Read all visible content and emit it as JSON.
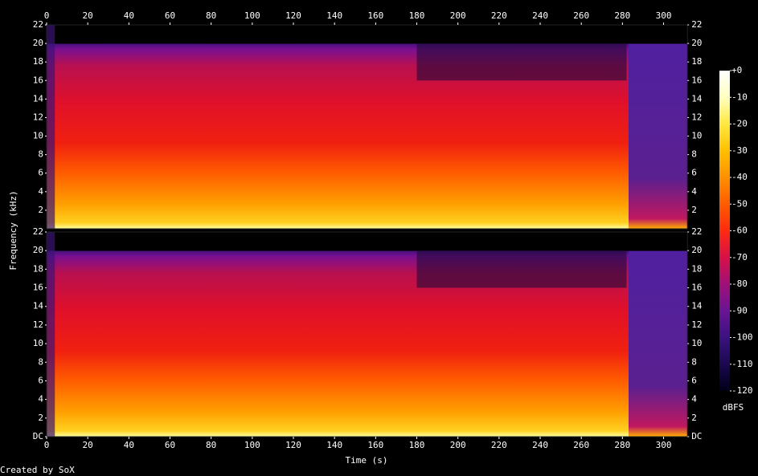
{
  "chart_data": {
    "type": "spectrogram",
    "x_label": "Time (s)",
    "y_label": "Frequency (kHz)",
    "colorbar_label": "dBFS",
    "footer": "Created by SoX",
    "xlim": [
      0,
      311.6
    ],
    "xticks": [
      0,
      20,
      40,
      60,
      80,
      100,
      120,
      140,
      160,
      180,
      200,
      220,
      240,
      260,
      280,
      300
    ],
    "panels": [
      {
        "ylim": [
          0,
          22
        ],
        "yticks": [
          2,
          4,
          6,
          8,
          10,
          12,
          14,
          16,
          18,
          20,
          22
        ]
      },
      {
        "ylim": [
          0,
          22
        ],
        "yticks": [
          {
            "value": 0,
            "label": "DC"
          },
          2,
          4,
          6,
          8,
          10,
          12,
          14,
          16,
          18,
          20,
          22
        ]
      }
    ],
    "colorbar": {
      "lim": [
        -120,
        0
      ],
      "ticks": [
        {
          "value": 0,
          "label": "+0"
        },
        -10,
        -20,
        -30,
        -40,
        -50,
        -60,
        -70,
        -80,
        -90,
        -100,
        -110,
        -120
      ],
      "colors": [
        "#000018",
        "#1a0850",
        "#3a1280",
        "#6a1494",
        "#a01078",
        "#d81048",
        "#ff2a10",
        "#ff5c00",
        "#ff9000",
        "#ffc000",
        "#ffe840",
        "#ffffc0",
        "#ffffff"
      ]
    }
  }
}
